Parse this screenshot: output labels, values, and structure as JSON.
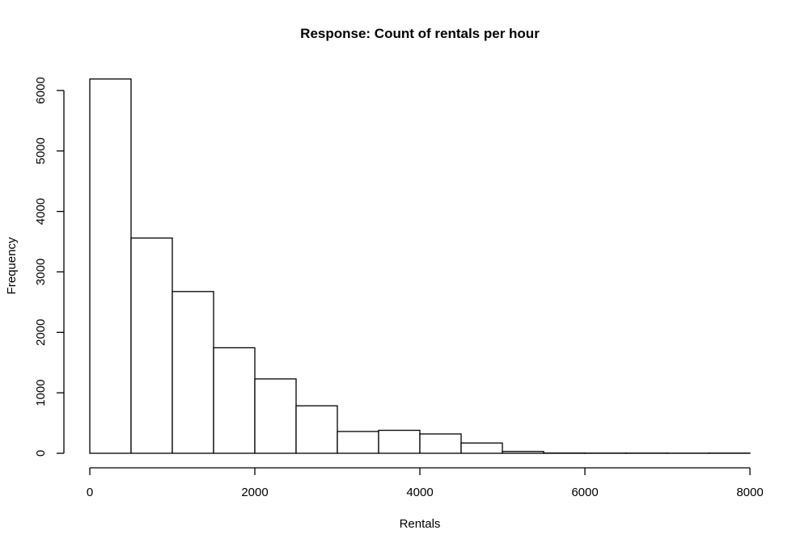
{
  "chart_data": {
    "type": "histogram",
    "title": "Response: Count of rentals per hour",
    "xlabel": "Rentals",
    "ylabel": "Frequency",
    "bin_width": 500,
    "bins": [
      {
        "start": 0,
        "end": 500,
        "count": 6190
      },
      {
        "start": 500,
        "end": 1000,
        "count": 3560
      },
      {
        "start": 1000,
        "end": 1500,
        "count": 2675
      },
      {
        "start": 1500,
        "end": 2000,
        "count": 1745
      },
      {
        "start": 2000,
        "end": 2500,
        "count": 1230
      },
      {
        "start": 2500,
        "end": 3000,
        "count": 785
      },
      {
        "start": 3000,
        "end": 3500,
        "count": 360
      },
      {
        "start": 3500,
        "end": 4000,
        "count": 380
      },
      {
        "start": 4000,
        "end": 4500,
        "count": 320
      },
      {
        "start": 4500,
        "end": 5000,
        "count": 170
      },
      {
        "start": 5000,
        "end": 5500,
        "count": 30
      },
      {
        "start": 5500,
        "end": 6000,
        "count": 4
      },
      {
        "start": 6000,
        "end": 6500,
        "count": 3
      },
      {
        "start": 6500,
        "end": 7000,
        "count": 3
      },
      {
        "start": 7000,
        "end": 7500,
        "count": 2
      },
      {
        "start": 7500,
        "end": 8000,
        "count": 3
      }
    ],
    "xlim": [
      0,
      8000
    ],
    "ylim": [
      0,
      6200
    ],
    "x_ticks": [
      0,
      2000,
      4000,
      6000,
      8000
    ],
    "y_ticks": [
      0,
      1000,
      2000,
      3000,
      4000,
      5000,
      6000
    ],
    "grid": false,
    "legend": "none"
  }
}
